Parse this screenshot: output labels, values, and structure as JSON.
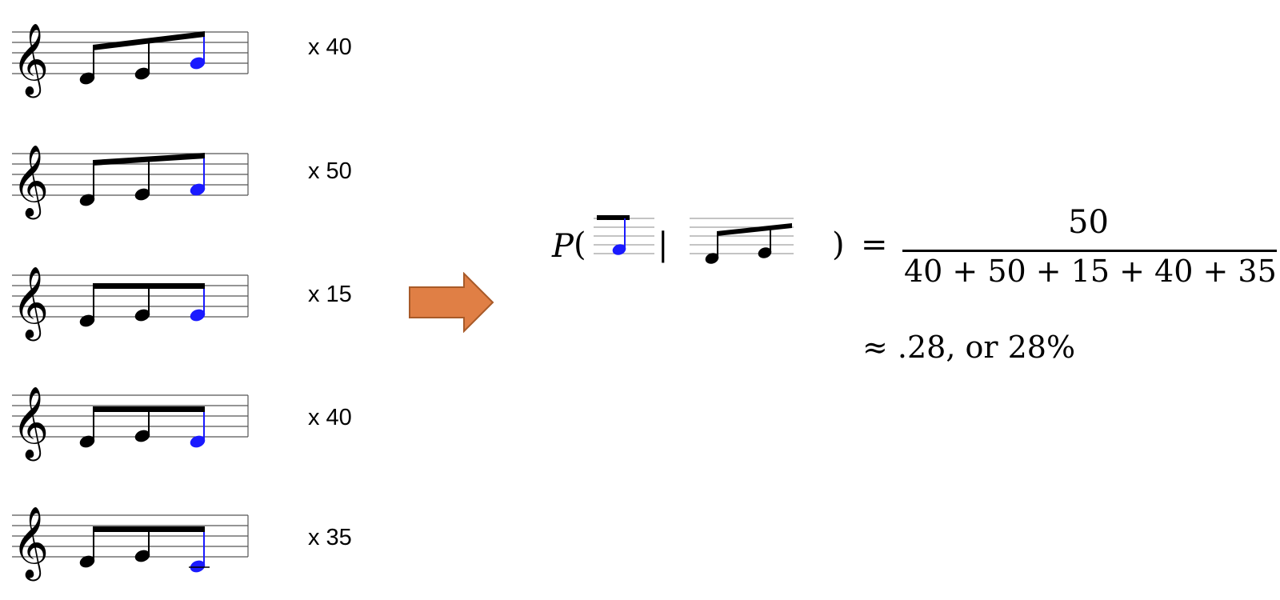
{
  "rows": [
    {
      "count_label": "x 40"
    },
    {
      "count_label": "x 50"
    },
    {
      "count_label": "x 15"
    },
    {
      "count_label": "x 40"
    },
    {
      "count_label": "x 35"
    }
  ],
  "formula": {
    "p_symbol": "P",
    "left_paren": "(",
    "given_bar": "|",
    "right_paren": ")",
    "equals": "=",
    "numerator": "50",
    "denominator": "40 + 50 + 15 + 40 + 35",
    "approximation": "≈ .28, or 28%"
  },
  "colors": {
    "highlight_note": "#1a1aff",
    "arrow_fill": "#E07F45",
    "arrow_stroke": "#A85A28",
    "ink": "#000000"
  }
}
